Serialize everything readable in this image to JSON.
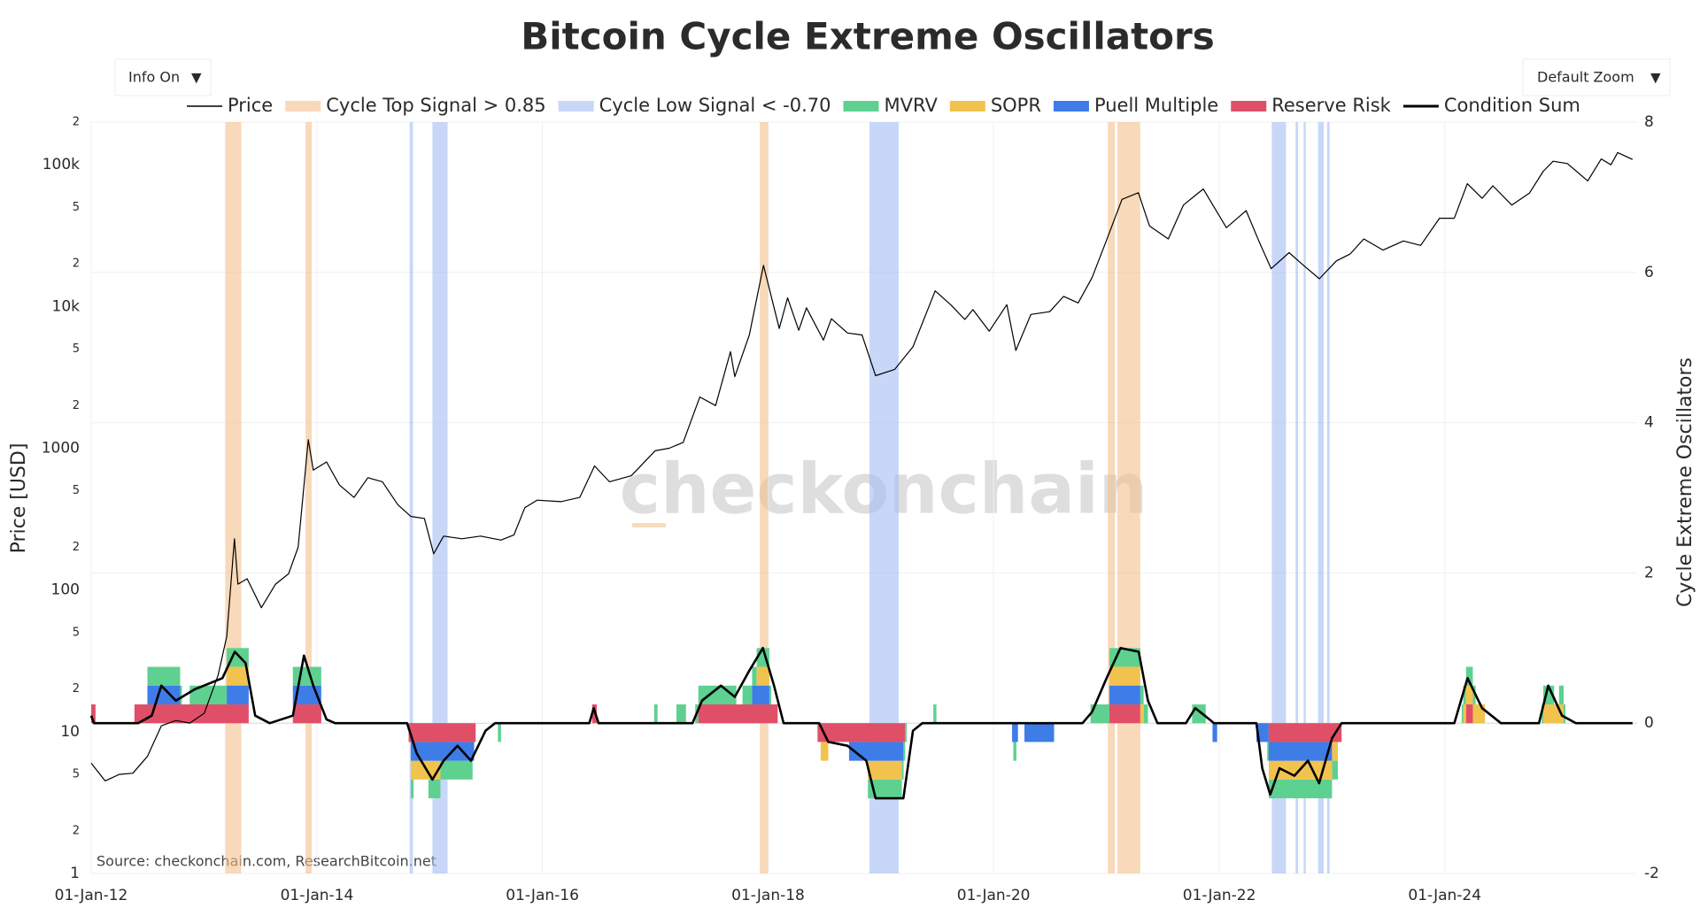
{
  "chart_data": {
    "type": "line",
    "title": "Bitcoin Cycle Extreme Oscillators",
    "controls": {
      "info": "Info On",
      "zoom": "Default Zoom",
      "arrow": "▼"
    },
    "ylabel": "Price [USD]",
    "y2label": "Cycle Extreme Oscillators",
    "watermark": "checkonchain",
    "source": "Source: checkonchain.com, ResearchBitcoin.net",
    "log_y": true,
    "grid": true,
    "xlim": [
      "2012-01-01",
      "2025-09-15"
    ],
    "xticks": [
      {
        "value": "2012-01-01",
        "label": "01-Jan-12"
      },
      {
        "value": "2014-01-01",
        "label": "01-Jan-14"
      },
      {
        "value": "2016-01-01",
        "label": "01-Jan-16"
      },
      {
        "value": "2018-01-01",
        "label": "01-Jan-18"
      },
      {
        "value": "2020-01-01",
        "label": "01-Jan-20"
      },
      {
        "value": "2022-01-01",
        "label": "01-Jan-22"
      },
      {
        "value": "2024-01-01",
        "label": "01-Jan-24"
      }
    ],
    "ylim": [
      1,
      200000
    ],
    "yticks": [
      1,
      {
        "value": 2,
        "label": "2"
      },
      {
        "value": 5,
        "label": "5"
      },
      10,
      {
        "value": 20,
        "label": "2"
      },
      {
        "value": 50,
        "label": "5"
      },
      100,
      {
        "value": 200,
        "label": "2"
      },
      {
        "value": 500,
        "label": "5"
      },
      1000,
      {
        "value": 2000,
        "label": "2"
      },
      {
        "value": 5000,
        "label": "5"
      },
      {
        "value": 10000,
        "label": "10k"
      },
      {
        "value": 20000,
        "label": "2"
      },
      {
        "value": 50000,
        "label": "5"
      },
      {
        "value": 100000,
        "label": "100k"
      },
      {
        "value": 200000,
        "label": "2"
      }
    ],
    "y2lim": [
      -2,
      8
    ],
    "y2ticks": [
      -2,
      0,
      2,
      4,
      6,
      8
    ],
    "series": [
      {
        "name": "Price",
        "color": "#000000",
        "x": [
          "2012-01-01",
          "2012-02-15",
          "2012-04-01",
          "2012-05-15",
          "2012-07-01",
          "2012-08-15",
          "2012-10-01",
          "2012-11-15",
          "2013-01-01",
          "2013-02-15",
          "2013-03-15",
          "2013-04-09",
          "2013-04-20",
          "2013-05-20",
          "2013-07-05",
          "2013-08-20",
          "2013-10-01",
          "2013-11-01",
          "2013-12-04",
          "2013-12-20",
          "2014-02-01",
          "2014-03-15",
          "2014-05-01",
          "2014-06-15",
          "2014-08-01",
          "2014-09-20",
          "2014-11-01",
          "2014-12-15",
          "2015-01-14",
          "2015-02-15",
          "2015-04-15",
          "2015-06-15",
          "2015-08-20",
          "2015-10-01",
          "2015-11-05",
          "2015-12-15",
          "2016-03-01",
          "2016-05-01",
          "2016-06-18",
          "2016-08-05",
          "2016-10-15",
          "2016-12-31",
          "2017-02-15",
          "2017-04-01",
          "2017-05-25",
          "2017-07-15",
          "2017-09-01",
          "2017-09-15",
          "2017-11-01",
          "2017-12-17",
          "2018-02-06",
          "2018-03-05",
          "2018-04-10",
          "2018-05-05",
          "2018-06-29",
          "2018-07-25",
          "2018-09-15",
          "2018-11-01",
          "2018-12-15",
          "2019-02-15",
          "2019-04-15",
          "2019-06-26",
          "2019-08-15",
          "2019-09-30",
          "2019-10-26",
          "2019-12-18",
          "2020-02-13",
          "2020-03-13",
          "2020-05-01",
          "2020-07-01",
          "2020-08-15",
          "2020-10-01",
          "2020-11-15",
          "2020-12-31",
          "2021-02-20",
          "2021-04-14",
          "2021-05-20",
          "2021-07-20",
          "2021-09-07",
          "2021-10-20",
          "2021-11-10",
          "2022-01-24",
          "2022-03-29",
          "2022-05-12",
          "2022-06-18",
          "2022-08-15",
          "2022-10-01",
          "2022-11-21",
          "2023-01-15",
          "2023-03-01",
          "2023-04-14",
          "2023-06-15",
          "2023-08-20",
          "2023-10-15",
          "2023-12-15",
          "2024-02-01",
          "2024-03-14",
          "2024-05-01",
          "2024-06-05",
          "2024-08-05",
          "2024-10-01",
          "2024-11-15",
          "2024-12-17",
          "2025-02-01",
          "2025-04-08",
          "2025-05-22",
          "2025-06-22",
          "2025-07-14",
          "2025-08-01",
          "2025-08-31"
        ],
        "values": [
          6,
          4.5,
          5,
          5.1,
          6.7,
          11,
          12,
          11.5,
          13.5,
          25,
          47,
          230,
          110,
          120,
          75,
          110,
          130,
          200,
          1150,
          700,
          800,
          550,
          450,
          620,
          580,
          400,
          330,
          320,
          180,
          240,
          230,
          240,
          225,
          245,
          380,
          430,
          420,
          450,
          750,
          580,
          640,
          960,
          1000,
          1100,
          2300,
          2000,
          4800,
          3200,
          6300,
          19500,
          7000,
          11500,
          6800,
          9800,
          5800,
          8200,
          6500,
          6300,
          3250,
          3600,
          5200,
          12900,
          10300,
          8100,
          9500,
          6700,
          10300,
          4900,
          8800,
          9200,
          11800,
          10600,
          16000,
          29000,
          57000,
          63500,
          37000,
          30000,
          52000,
          62000,
          67500,
          36000,
          47500,
          28000,
          18500,
          24000,
          19500,
          15700,
          21000,
          23500,
          30000,
          25000,
          29000,
          27000,
          42000,
          42000,
          73500,
          58000,
          71000,
          52000,
          63000,
          90000,
          106000,
          102000,
          77000,
          110000,
          100000,
          122000,
          117000,
          109000
        ]
      },
      {
        "name": "Condition Sum",
        "color": "#000000",
        "axis": "y2",
        "x": [
          "2012-01-01",
          "2012-01-10",
          "2012-06-01",
          "2012-07-15",
          "2012-08-15",
          "2012-10-01",
          "2012-12-01",
          "2013-03-01",
          "2013-04-10",
          "2013-05-15",
          "2013-06-15",
          "2013-08-01",
          "2013-10-15",
          "2013-11-20",
          "2013-12-20",
          "2014-02-01",
          "2014-03-01",
          "2014-10-20",
          "2014-11-20",
          "2015-01-10",
          "2015-02-15",
          "2015-04-01",
          "2015-05-15",
          "2015-07-01",
          "2015-08-01",
          "2016-06-01",
          "2016-06-15",
          "2016-07-01",
          "2017-05-01",
          "2017-06-01",
          "2017-08-01",
          "2017-09-15",
          "2017-11-01",
          "2017-12-15",
          "2018-01-20",
          "2018-02-20",
          "2018-06-15",
          "2018-07-15",
          "2018-09-15",
          "2018-11-15",
          "2018-12-15",
          "2019-03-15",
          "2019-04-15",
          "2019-05-15",
          "2020-10-15",
          "2020-11-15",
          "2021-01-01",
          "2021-02-15",
          "2021-04-15",
          "2021-05-15",
          "2021-06-15",
          "2021-09-15",
          "2021-10-15",
          "2021-11-15",
          "2021-12-15",
          "2022-05-01",
          "2022-05-20",
          "2022-06-15",
          "2022-07-15",
          "2022-09-01",
          "2022-10-15",
          "2022-11-20",
          "2023-01-01",
          "2023-02-01",
          "2024-02-01",
          "2024-03-15",
          "2024-05-01",
          "2024-07-01",
          "2024-11-01",
          "2024-12-01",
          "2025-01-15",
          "2025-03-01",
          "2025-08-31"
        ],
        "values": [
          0.1,
          0,
          0,
          0.1,
          0.5,
          0.3,
          0.45,
          0.6,
          0.95,
          0.8,
          0.1,
          0,
          0.1,
          0.9,
          0.5,
          0.05,
          0,
          0,
          -0.4,
          -0.75,
          -0.5,
          -0.3,
          -0.5,
          -0.1,
          0,
          0,
          0.2,
          0,
          0,
          0.3,
          0.5,
          0.35,
          0.7,
          1,
          0.5,
          0,
          0,
          -0.25,
          -0.3,
          -0.5,
          -1,
          -1,
          -0.1,
          0,
          0,
          0.15,
          0.6,
          1,
          0.95,
          0.3,
          0,
          0,
          0.2,
          0.1,
          0,
          0,
          -0.6,
          -0.95,
          -0.6,
          -0.7,
          -0.5,
          -0.8,
          -0.2,
          0,
          0,
          0.6,
          0.2,
          0,
          0,
          0.5,
          0.1,
          0,
          0
        ]
      }
    ],
    "bands": [
      {
        "name": "Cycle Top Signal > 0.85",
        "color": "#f4c08c",
        "intervals": [
          [
            "2013-03-10",
            "2013-05-01"
          ],
          [
            "2013-11-25",
            "2013-12-15"
          ],
          [
            "2017-12-05",
            "2018-01-01"
          ],
          [
            "2021-01-05",
            "2021-01-28"
          ],
          [
            "2021-02-05",
            "2021-04-20"
          ]
        ]
      },
      {
        "name": "Cycle Low Signal < -0.70",
        "color": "#a3bdf4",
        "intervals": [
          [
            "2014-10-28",
            "2014-11-08"
          ],
          [
            "2015-01-10",
            "2015-02-28"
          ],
          [
            "2018-11-25",
            "2019-02-28"
          ],
          [
            "2022-06-20",
            "2022-08-05"
          ],
          [
            "2022-09-05",
            "2022-09-13"
          ],
          [
            "2022-10-01",
            "2022-10-08"
          ],
          [
            "2022-11-17",
            "2022-12-05"
          ],
          [
            "2022-12-16",
            "2022-12-24"
          ]
        ]
      }
    ],
    "indicators": [
      {
        "name": "MVRV",
        "color": "#5ed190",
        "axis": "y2",
        "intervals": [
          {
            "start": "2012-07-01",
            "end": "2012-10-20",
            "value": 0.25
          },
          {
            "start": "2012-11-15",
            "end": "2013-05-25",
            "value": 0.25
          },
          {
            "start": "2013-10-15",
            "end": "2014-01-15",
            "value": 0.25
          },
          {
            "start": "2014-11-01",
            "end": "2014-11-10",
            "value": -0.25
          },
          {
            "start": "2014-12-28",
            "end": "2015-05-20",
            "value": -0.25
          },
          {
            "start": "2015-08-10",
            "end": "2015-08-20",
            "value": -0.25
          },
          {
            "start": "2016-12-28",
            "end": "2017-01-08",
            "value": 0.25
          },
          {
            "start": "2017-03-10",
            "end": "2017-04-10",
            "value": 0.25
          },
          {
            "start": "2017-05-10",
            "end": "2017-09-20",
            "value": 0.25
          },
          {
            "start": "2017-10-10",
            "end": "2018-01-10",
            "value": 0.25
          },
          {
            "start": "2018-11-20",
            "end": "2019-03-25",
            "value": -0.25
          },
          {
            "start": "2019-06-20",
            "end": "2019-06-30",
            "value": 0.25
          },
          {
            "start": "2020-03-05",
            "end": "2020-03-15",
            "value": -0.25
          },
          {
            "start": "2020-11-10",
            "end": "2021-05-15",
            "value": 0.25
          },
          {
            "start": "2021-10-05",
            "end": "2021-11-18",
            "value": 0.25
          },
          {
            "start": "2022-06-05",
            "end": "2023-01-20",
            "value": -0.25
          },
          {
            "start": "2024-02-25",
            "end": "2024-04-10",
            "value": 0.25
          },
          {
            "start": "2024-11-10",
            "end": "2024-12-20",
            "value": 0.25
          },
          {
            "start": "2025-01-05",
            "end": "2025-01-25",
            "value": 0.25
          }
        ]
      },
      {
        "name": "SOPR",
        "color": "#f1c34e",
        "axis": "y2",
        "intervals": [
          {
            "start": "2013-03-15",
            "end": "2013-05-25",
            "value": 0.25
          },
          {
            "start": "2014-11-01",
            "end": "2015-02-05",
            "value": -0.25
          },
          {
            "start": "2017-11-25",
            "end": "2018-01-05",
            "value": 0.25
          },
          {
            "start": "2018-06-20",
            "end": "2018-07-15",
            "value": -0.25
          },
          {
            "start": "2018-11-20",
            "end": "2019-03-10",
            "value": -0.25
          },
          {
            "start": "2021-01-10",
            "end": "2021-05-01",
            "value": 0.25
          },
          {
            "start": "2022-06-10",
            "end": "2023-01-20",
            "value": -0.25
          },
          {
            "start": "2024-03-01",
            "end": "2024-05-10",
            "value": 0.25
          },
          {
            "start": "2024-11-15",
            "end": "2025-01-20",
            "value": 0.25
          }
        ]
      },
      {
        "name": "Puell Multiple",
        "color": "#3e7ce8",
        "axis": "y2",
        "intervals": [
          {
            "start": "2012-07-01",
            "end": "2012-10-15",
            "value": 0.25
          },
          {
            "start": "2013-03-15",
            "end": "2013-05-25",
            "value": 0.25
          },
          {
            "start": "2013-10-15",
            "end": "2014-01-15",
            "value": 0.25
          },
          {
            "start": "2014-11-01",
            "end": "2015-05-25",
            "value": -0.25
          },
          {
            "start": "2017-11-10",
            "end": "2018-01-05",
            "value": 0.25
          },
          {
            "start": "2018-09-20",
            "end": "2019-03-15",
            "value": -0.25
          },
          {
            "start": "2020-03-01",
            "end": "2020-03-20",
            "value": -0.25
          },
          {
            "start": "2020-04-10",
            "end": "2020-07-15",
            "value": -0.25
          },
          {
            "start": "2021-01-10",
            "end": "2021-04-20",
            "value": 0.25
          },
          {
            "start": "2021-12-10",
            "end": "2021-12-25",
            "value": -0.25
          },
          {
            "start": "2022-05-01",
            "end": "2023-01-01",
            "value": -0.25
          }
        ]
      },
      {
        "name": "Reserve Risk",
        "color": "#e04f68",
        "axis": "y2",
        "intervals": [
          {
            "start": "2012-01-01",
            "end": "2012-01-15",
            "value": 0.25
          },
          {
            "start": "2012-05-20",
            "end": "2013-05-25",
            "value": 0.25
          },
          {
            "start": "2013-10-15",
            "end": "2014-01-15",
            "value": 0.25
          },
          {
            "start": "2014-10-25",
            "end": "2015-05-30",
            "value": -0.25
          },
          {
            "start": "2016-06-10",
            "end": "2016-06-25",
            "value": 0.25
          },
          {
            "start": "2017-05-20",
            "end": "2018-02-01",
            "value": 0.25
          },
          {
            "start": "2018-06-10",
            "end": "2019-03-20",
            "value": -0.25
          },
          {
            "start": "2021-01-10",
            "end": "2021-04-20",
            "value": 0.25
          },
          {
            "start": "2022-06-10",
            "end": "2023-02-01",
            "value": -0.25
          },
          {
            "start": "2024-03-10",
            "end": "2024-04-01",
            "value": 0.25
          }
        ]
      }
    ]
  }
}
